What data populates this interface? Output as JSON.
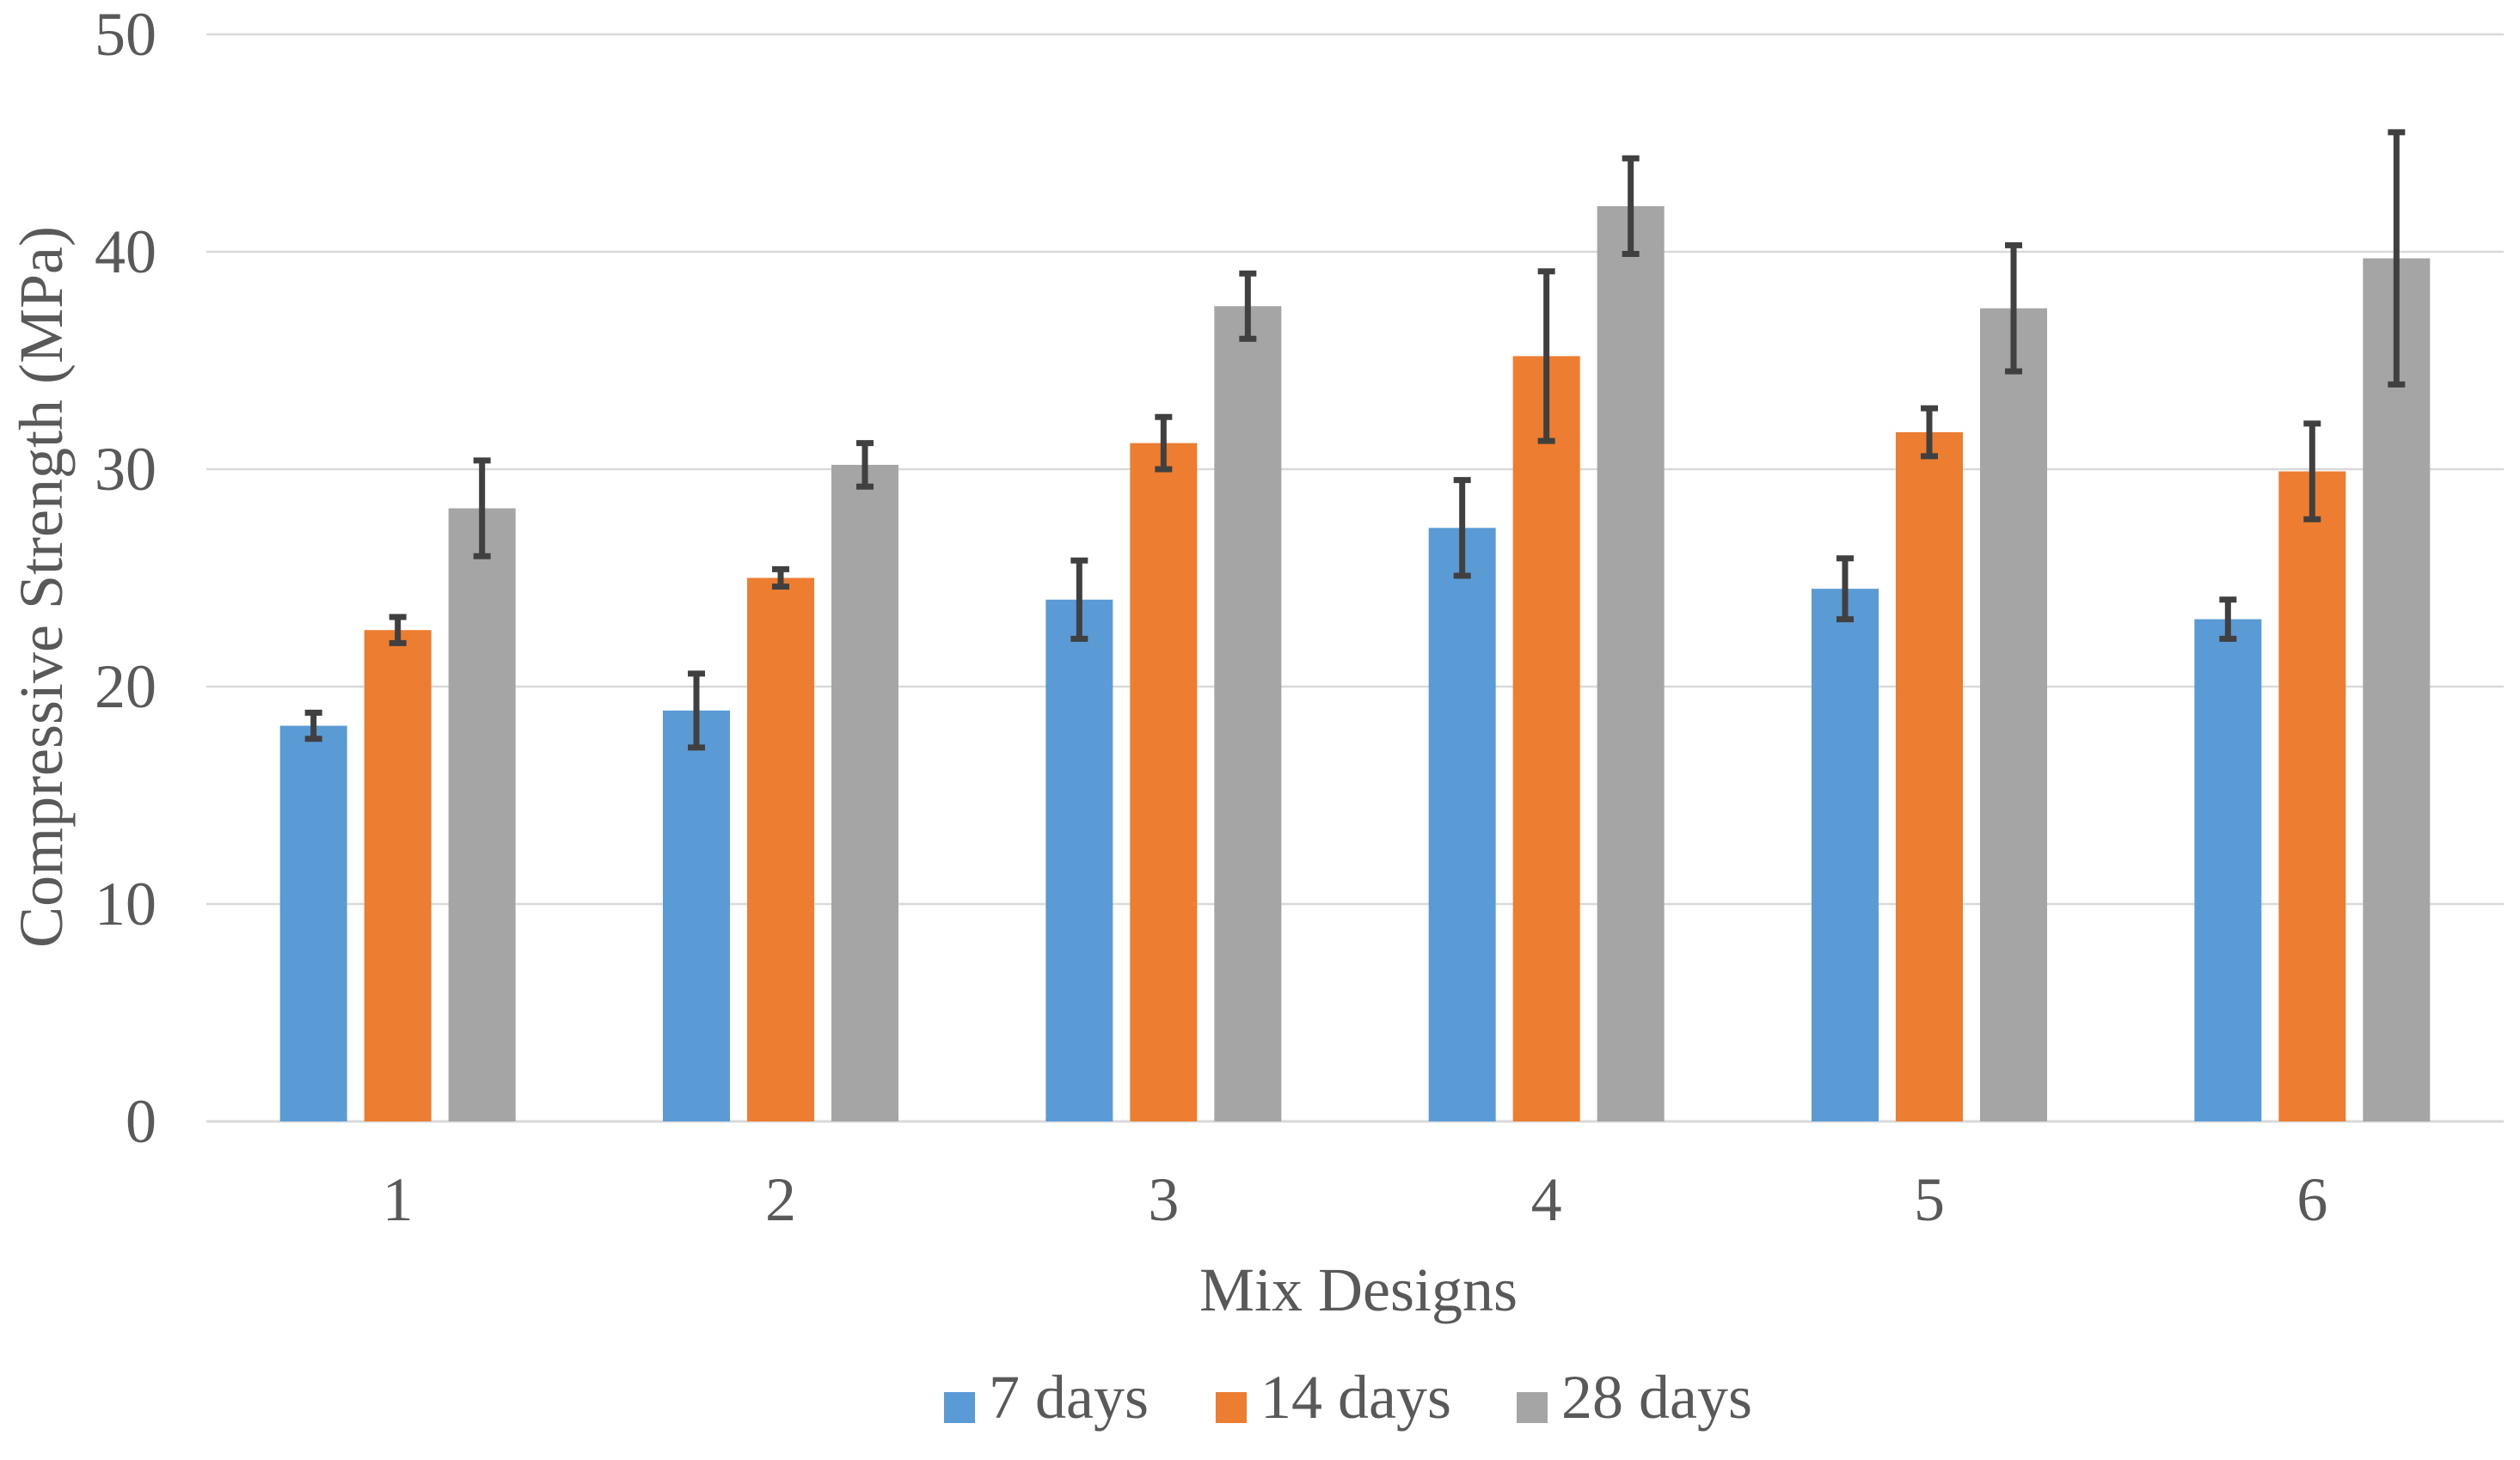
{
  "chart_data": {
    "type": "bar",
    "title": "",
    "xlabel": "Mix Designs",
    "ylabel": "Compressive Strength (MPa)",
    "ylim": [
      0,
      50
    ],
    "yticks": [
      "0",
      "10",
      "20",
      "30",
      "40",
      "50"
    ],
    "yticks_values": [
      0,
      10,
      20,
      30,
      40,
      50
    ],
    "categories": [
      "1",
      "2",
      "3",
      "4",
      "5",
      "6"
    ],
    "grid": true,
    "legend_position": "bottom",
    "series": [
      {
        "name": "7 days",
        "color": "#5b9bd5",
        "values": [
          18.2,
          18.9,
          24.0,
          27.3,
          24.5,
          23.1
        ],
        "errors": [
          0.6,
          1.7,
          1.8,
          2.2,
          1.4,
          0.9
        ]
      },
      {
        "name": "14 days",
        "color": "#ed7d31",
        "values": [
          22.6,
          25.0,
          31.2,
          35.2,
          31.7,
          29.9
        ],
        "errors": [
          0.6,
          0.4,
          1.2,
          3.9,
          1.1,
          2.2
        ]
      },
      {
        "name": "28 days",
        "color": "#a5a5a5",
        "values": [
          28.2,
          30.2,
          37.5,
          42.1,
          37.4,
          39.7
        ],
        "errors": [
          2.2,
          1.0,
          1.5,
          2.2,
          2.9,
          5.8
        ]
      }
    ]
  }
}
